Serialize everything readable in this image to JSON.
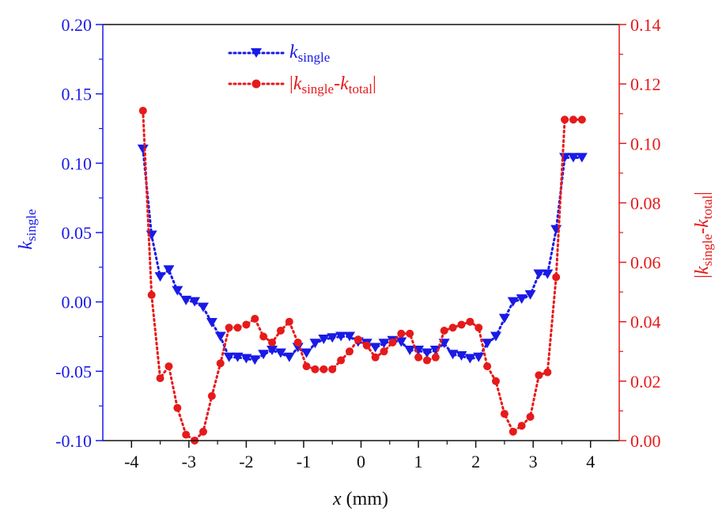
{
  "chart_data": {
    "type": "line",
    "xlabel": "x (mm)",
    "xlim": [
      -4.5,
      4.5
    ],
    "xticks": [
      -4,
      -3,
      -2,
      -1,
      0,
      1,
      2,
      3,
      4
    ],
    "y_left": {
      "label": "k_single",
      "color": "#1a1ae6",
      "ylim": [
        -0.1,
        0.2
      ],
      "ticks": [
        "0.20",
        "0.15",
        "0.10",
        "0.05",
        "0.00",
        "-0.05",
        "-0.10"
      ]
    },
    "y_right": {
      "label": "|k_single-k_total|",
      "color": "#e61a1a",
      "ylim": [
        0,
        0.14
      ],
      "ticks": [
        "0.14",
        "0.12",
        "0.10",
        "0.08",
        "0.06",
        "0.04",
        "0.02",
        "0.00"
      ]
    },
    "legend": {
      "placement": "top-center",
      "entries": [
        {
          "base": "k",
          "sub": "single"
        },
        {
          "base": "k",
          "sub": "single",
          "mid": "-",
          "base2": "k",
          "sub2": "total"
        }
      ]
    },
    "series": [
      {
        "name": "k_single",
        "axis": "left",
        "color": "#1a1ae6",
        "marker": "triangle-down",
        "x": [
          -3.8,
          -3.65,
          -3.5,
          -3.35,
          -3.2,
          -3.05,
          -2.9,
          -2.75,
          -2.6,
          -2.45,
          -2.3,
          -2.15,
          -2.0,
          -1.85,
          -1.7,
          -1.55,
          -1.4,
          -1.25,
          -1.1,
          -0.95,
          -0.8,
          -0.65,
          -0.5,
          -0.35,
          -0.2,
          -0.05,
          0.1,
          0.25,
          0.4,
          0.55,
          0.7,
          0.85,
          1.0,
          1.15,
          1.3,
          1.45,
          1.6,
          1.75,
          1.9,
          2.05,
          2.2,
          2.35,
          2.5,
          2.65,
          2.8,
          2.95,
          3.1,
          3.25,
          3.4,
          3.55,
          3.7,
          3.85
        ],
        "values": [
          0.11,
          0.048,
          0.018,
          0.023,
          0.008,
          0.001,
          0.0,
          -0.004,
          -0.015,
          -0.025,
          -0.04,
          -0.04,
          -0.041,
          -0.042,
          -0.038,
          -0.035,
          -0.037,
          -0.04,
          -0.033,
          -0.037,
          -0.03,
          -0.027,
          -0.026,
          -0.025,
          -0.025,
          -0.029,
          -0.03,
          -0.033,
          -0.03,
          -0.028,
          -0.029,
          -0.035,
          -0.035,
          -0.037,
          -0.035,
          -0.03,
          -0.038,
          -0.039,
          -0.041,
          -0.04,
          -0.03,
          -0.025,
          -0.012,
          0.0,
          0.002,
          0.005,
          0.02,
          0.02,
          0.052,
          0.104,
          0.104,
          0.104
        ]
      },
      {
        "name": "|k_single-k_total|",
        "axis": "right",
        "color": "#e61a1a",
        "marker": "circle",
        "x": [
          -3.8,
          -3.65,
          -3.5,
          -3.35,
          -3.2,
          -3.05,
          -2.9,
          -2.75,
          -2.6,
          -2.45,
          -2.3,
          -2.15,
          -2.0,
          -1.85,
          -1.7,
          -1.55,
          -1.4,
          -1.25,
          -1.1,
          -0.95,
          -0.8,
          -0.65,
          -0.5,
          -0.35,
          -0.2,
          -0.05,
          0.1,
          0.25,
          0.4,
          0.55,
          0.7,
          0.85,
          1.0,
          1.15,
          1.3,
          1.45,
          1.6,
          1.75,
          1.9,
          2.05,
          2.2,
          2.35,
          2.5,
          2.65,
          2.8,
          2.95,
          3.1,
          3.25,
          3.4,
          3.55,
          3.7,
          3.85
        ],
        "values": [
          0.111,
          0.049,
          0.021,
          0.025,
          0.011,
          0.002,
          0.0,
          0.003,
          0.015,
          0.026,
          0.038,
          0.038,
          0.039,
          0.041,
          0.035,
          0.033,
          0.037,
          0.04,
          0.033,
          0.025,
          0.024,
          0.024,
          0.024,
          0.027,
          0.03,
          0.034,
          0.032,
          0.028,
          0.03,
          0.033,
          0.036,
          0.036,
          0.028,
          0.027,
          0.028,
          0.037,
          0.038,
          0.039,
          0.04,
          0.038,
          0.025,
          0.02,
          0.009,
          0.003,
          0.005,
          0.008,
          0.022,
          0.023,
          0.055,
          0.108,
          0.108,
          0.108
        ]
      }
    ]
  }
}
